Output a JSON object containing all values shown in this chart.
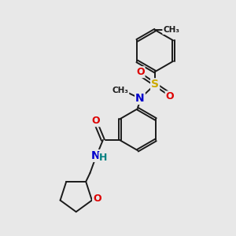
{
  "bg_color": "#e8e8e8",
  "bond_color": "#1a1a1a",
  "colors": {
    "N": "#0000cc",
    "O": "#dd0000",
    "S": "#ccaa00",
    "C": "#1a1a1a",
    "H": "#008080"
  },
  "figsize": [
    3.0,
    3.0
  ],
  "dpi": 100
}
